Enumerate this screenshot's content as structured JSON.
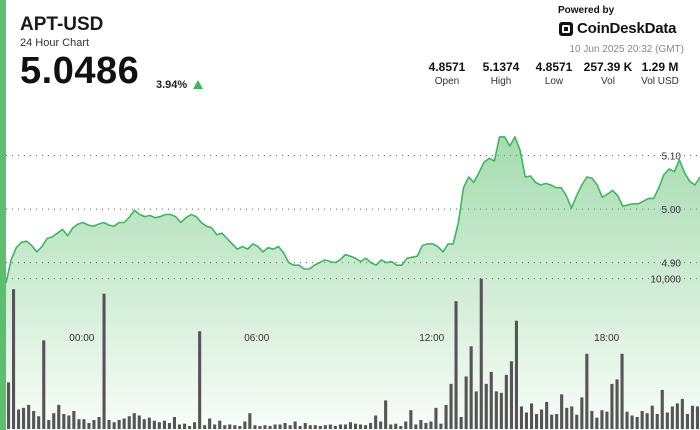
{
  "header": {
    "ticker": "APT-USD",
    "subtitle": "24 Hour Chart",
    "price": "5.0486",
    "change": "3.94%"
  },
  "branding": {
    "powered_by": "Powered by",
    "name": "CoinDeskData",
    "icon": "coindesk-logo-icon"
  },
  "timestamp": "10 Jun 2025 20:32 (GMT)",
  "stats": [
    {
      "value": "4.8571",
      "label": "Open"
    },
    {
      "value": "5.1374",
      "label": "High"
    },
    {
      "value": "4.8571",
      "label": "Low"
    },
    {
      "value": "257.39 K",
      "label": "Vol"
    },
    {
      "value": "1.29 M",
      "label": "Vol USD"
    }
  ],
  "colors": {
    "accent": "#5cbf6e",
    "line": "#3bb85c",
    "volume": "#555555"
  },
  "chart_data": {
    "type": "area",
    "title": "APT-USD",
    "subtitle": "24 Hour Chart",
    "ylim": [
      4.83,
      5.205
    ],
    "xlim": [
      -2.6,
      21.2
    ],
    "x_ticks": [
      {
        "label": "00:00",
        "value": 0
      },
      {
        "label": "06:00",
        "value": 6
      },
      {
        "label": "12:00",
        "value": 12
      },
      {
        "label": "18:00",
        "value": 18
      }
    ],
    "y_ticks": [
      {
        "label": "5.10",
        "value": 5.1
      },
      {
        "label": "5.00",
        "value": 5.0
      },
      {
        "label": "4.90",
        "value": 4.9
      }
    ],
    "volume_tick": {
      "label": "10,000",
      "value": 10000
    },
    "volume_max": 13500,
    "grid": false,
    "series": [
      {
        "name": "",
        "values": [
          4.862,
          4.905,
          4.928,
          4.938,
          4.94,
          4.932,
          4.92,
          4.93,
          4.945,
          4.948,
          4.955,
          4.962,
          4.95,
          4.965,
          4.972,
          4.975,
          4.97,
          4.968,
          4.972,
          4.975,
          4.97,
          4.968,
          4.975,
          4.975,
          4.985,
          4.998,
          4.99,
          4.986,
          4.988,
          4.984,
          4.986,
          4.99,
          4.99,
          4.986,
          4.975,
          4.984,
          4.99,
          4.986,
          4.975,
          4.968,
          4.965,
          4.952,
          4.955,
          4.945,
          4.935,
          4.925,
          4.93,
          4.925,
          4.935,
          4.93,
          4.92,
          4.928,
          4.925,
          4.93,
          4.918,
          4.9,
          4.895,
          4.895,
          4.888,
          4.888,
          4.895,
          4.9,
          4.905,
          4.902,
          4.9,
          4.905,
          4.915,
          4.912,
          4.908,
          4.902,
          4.908,
          4.9,
          4.895,
          4.905,
          4.9,
          4.902,
          4.895,
          4.895,
          4.908,
          4.91,
          4.912,
          4.932,
          4.935,
          4.935,
          4.93,
          4.92,
          4.935,
          4.935,
          4.975,
          5.04,
          5.06,
          5.05,
          5.068,
          5.088,
          5.095,
          5.09,
          5.135,
          5.135,
          5.118,
          5.135,
          5.11,
          5.06,
          5.062,
          5.05,
          5.045,
          5.048,
          5.045,
          5.04,
          5.04,
          5.025,
          5.002,
          5.025,
          5.045,
          5.06,
          5.058,
          5.045,
          5.022,
          5.028,
          5.035,
          5.025,
          5.005,
          5.008,
          5.01,
          5.01,
          5.015,
          5.02,
          5.02,
          5.04,
          5.065,
          5.075,
          5.07,
          5.092,
          5.068,
          5.052,
          5.045,
          5.06
        ]
      }
    ],
    "volume": {
      "name": "Vol",
      "values": [
        3100,
        9300,
        1300,
        1400,
        1600,
        1200,
        850,
        5900,
        600,
        1050,
        1600,
        1000,
        900,
        1200,
        650,
        650,
        400,
        600,
        800,
        9000,
        600,
        450,
        600,
        700,
        850,
        1050,
        900,
        650,
        750,
        550,
        450,
        550,
        400,
        800,
        300,
        350,
        200,
        450,
        6500,
        250,
        700,
        300,
        550,
        250,
        300,
        250,
        200,
        500,
        1050,
        250,
        200,
        250,
        200,
        300,
        300,
        400,
        250,
        500,
        200,
        400,
        250,
        250,
        200,
        250,
        300,
        200,
        300,
        300,
        450,
        350,
        300,
        250,
        400,
        900,
        500,
        1900,
        300,
        350,
        200,
        500,
        1250,
        300,
        600,
        400,
        500,
        1400,
        350,
        1600,
        3000,
        8500,
        800,
        3500,
        5500,
        2500,
        10000,
        3000,
        3800,
        2500,
        2400,
        3600,
        4500,
        7200,
        1500,
        1100,
        1700,
        1000,
        1300,
        1800,
        950,
        1000,
        2300,
        1400,
        1500,
        950,
        2100,
        5000,
        1200,
        750,
        1250,
        1150,
        3000,
        3300,
        5000,
        1150,
        900,
        800,
        1200,
        1050,
        1550,
        1000,
        2600,
        1100,
        1500,
        1700,
        2000,
        1000,
        1550,
        1500
      ]
    }
  }
}
